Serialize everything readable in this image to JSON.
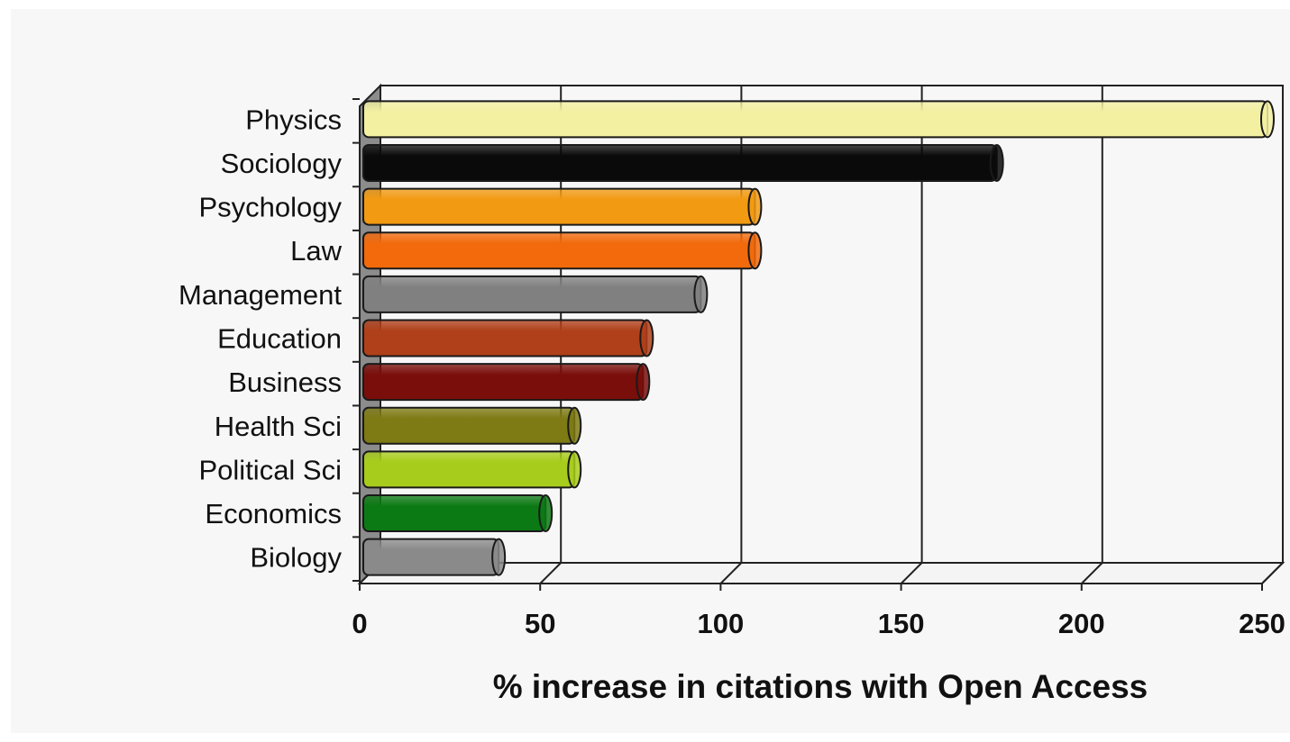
{
  "chart_data": {
    "type": "bar",
    "orientation": "horizontal",
    "style": "3d-cylinder",
    "categories": [
      "Physics",
      "Sociology",
      "Psychology",
      "Law",
      "Management",
      "Education",
      "Business",
      "Health Sci",
      "Political Sci",
      "Economics",
      "Biology"
    ],
    "values": [
      250,
      175,
      108,
      108,
      93,
      78,
      77,
      58,
      58,
      50,
      37
    ],
    "colors": [
      "#f3f0a2",
      "#0a0a0a",
      "#f29a12",
      "#f26a0c",
      "#808080",
      "#b0401a",
      "#7a0e0a",
      "#7e7a14",
      "#a8cc1c",
      "#0c7a14",
      "#8a8a8a"
    ],
    "xlabel": "% increase in citations with Open Access",
    "xlim": [
      0,
      250
    ],
    "xticks": [
      "0",
      "50",
      "100",
      "150",
      "200",
      "250"
    ],
    "grid": "vertical"
  }
}
